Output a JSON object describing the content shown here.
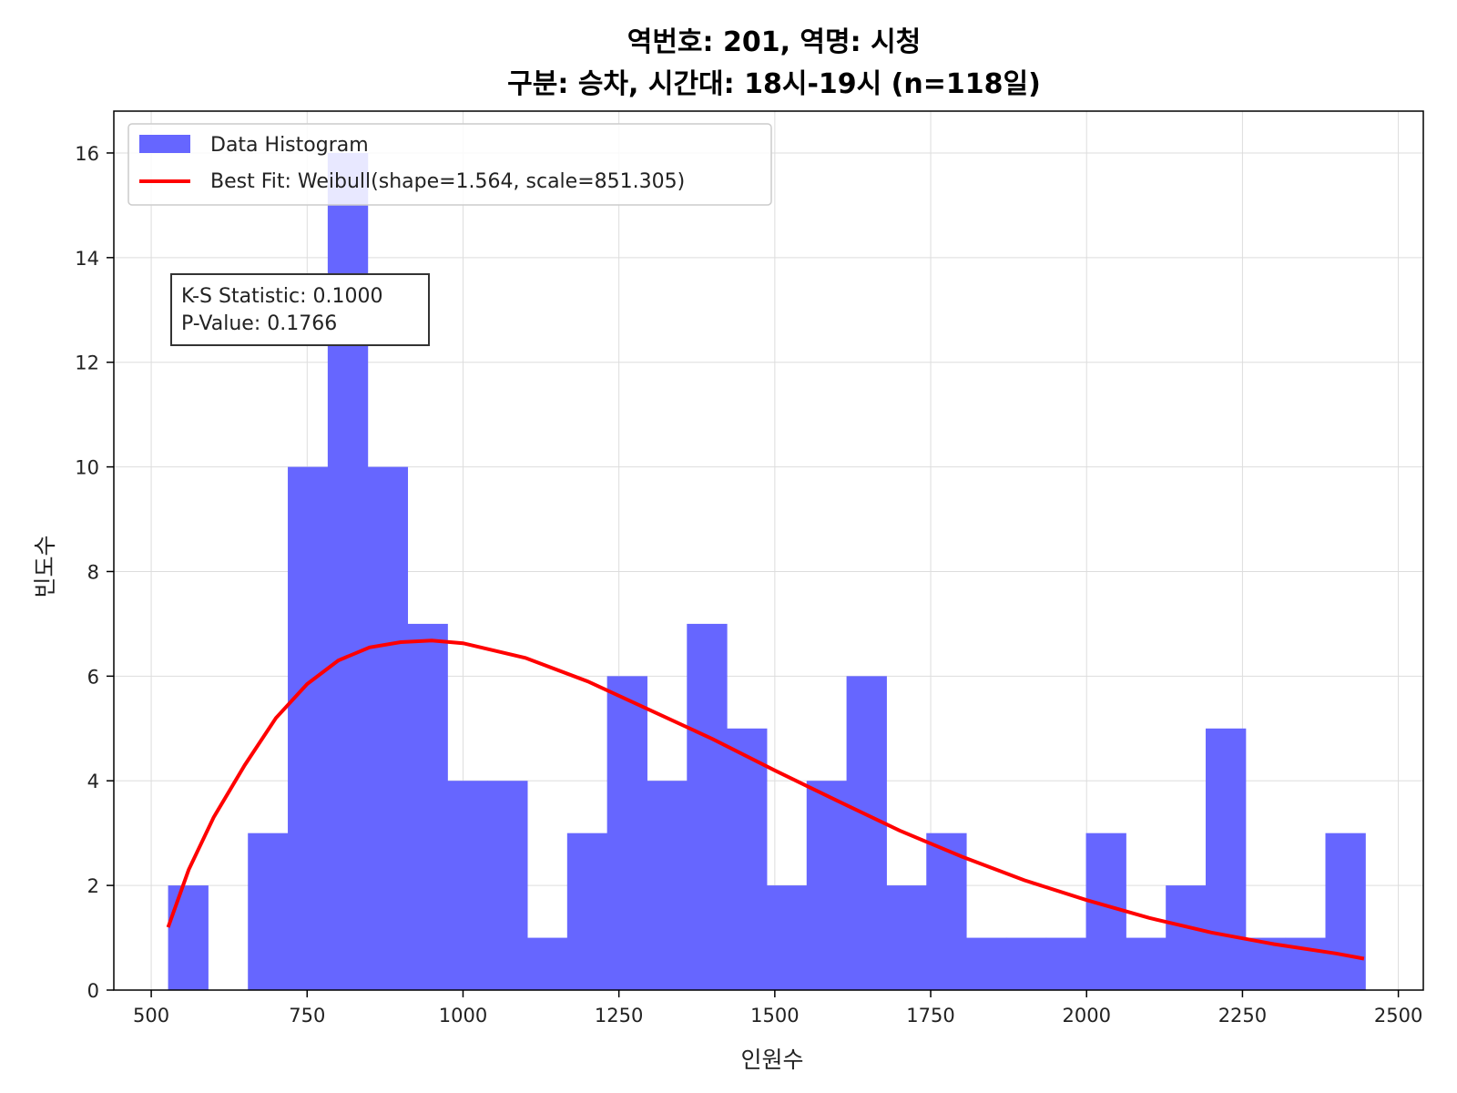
{
  "chart_data": {
    "type": "bar",
    "title_line1": "역번호: 201, 역명: 시청",
    "title_line2": "구분: 승차, 시간대: 18시-19시 (n=118일)",
    "xlabel": "인원수",
    "ylabel": "빈도수",
    "xlim": [
      440,
      2540
    ],
    "ylim": [
      0,
      16.8
    ],
    "xticks": [
      500,
      750,
      1000,
      1250,
      1500,
      1750,
      2000,
      2250,
      2500
    ],
    "yticks": [
      0,
      2,
      4,
      6,
      8,
      10,
      12,
      14,
      16
    ],
    "grid": true,
    "legend_position": "upper left",
    "legend": [
      "Data Histogram",
      "Best Fit: Weibull(shape=1.564, scale=851.305)"
    ],
    "annotation": [
      "K-S Statistic: 0.1000",
      "P-Value: 0.1766"
    ],
    "histogram": {
      "name": "Data Histogram",
      "color": "#6666ff",
      "bin_start": 527,
      "bin_width": 64,
      "counts": [
        2,
        0,
        3,
        10,
        16,
        10,
        7,
        4,
        4,
        1,
        3,
        6,
        4,
        7,
        5,
        2,
        4,
        6,
        2,
        3,
        1,
        1,
        1,
        3,
        1,
        2,
        5,
        1,
        1,
        3
      ]
    },
    "fit": {
      "name": "Best Fit: Weibull(shape=1.564, scale=851.305)",
      "color": "#ff0000",
      "x": [
        527,
        560,
        600,
        650,
        700,
        750,
        800,
        850,
        900,
        950,
        1000,
        1100,
        1200,
        1300,
        1400,
        1500,
        1600,
        1700,
        1800,
        1900,
        2000,
        2100,
        2200,
        2300,
        2400,
        2445
      ],
      "y": [
        1.2,
        2.3,
        3.3,
        4.3,
        5.2,
        5.85,
        6.3,
        6.55,
        6.65,
        6.68,
        6.63,
        6.35,
        5.9,
        5.35,
        4.8,
        4.2,
        3.62,
        3.05,
        2.55,
        2.1,
        1.72,
        1.38,
        1.1,
        0.88,
        0.7,
        0.6
      ]
    }
  }
}
